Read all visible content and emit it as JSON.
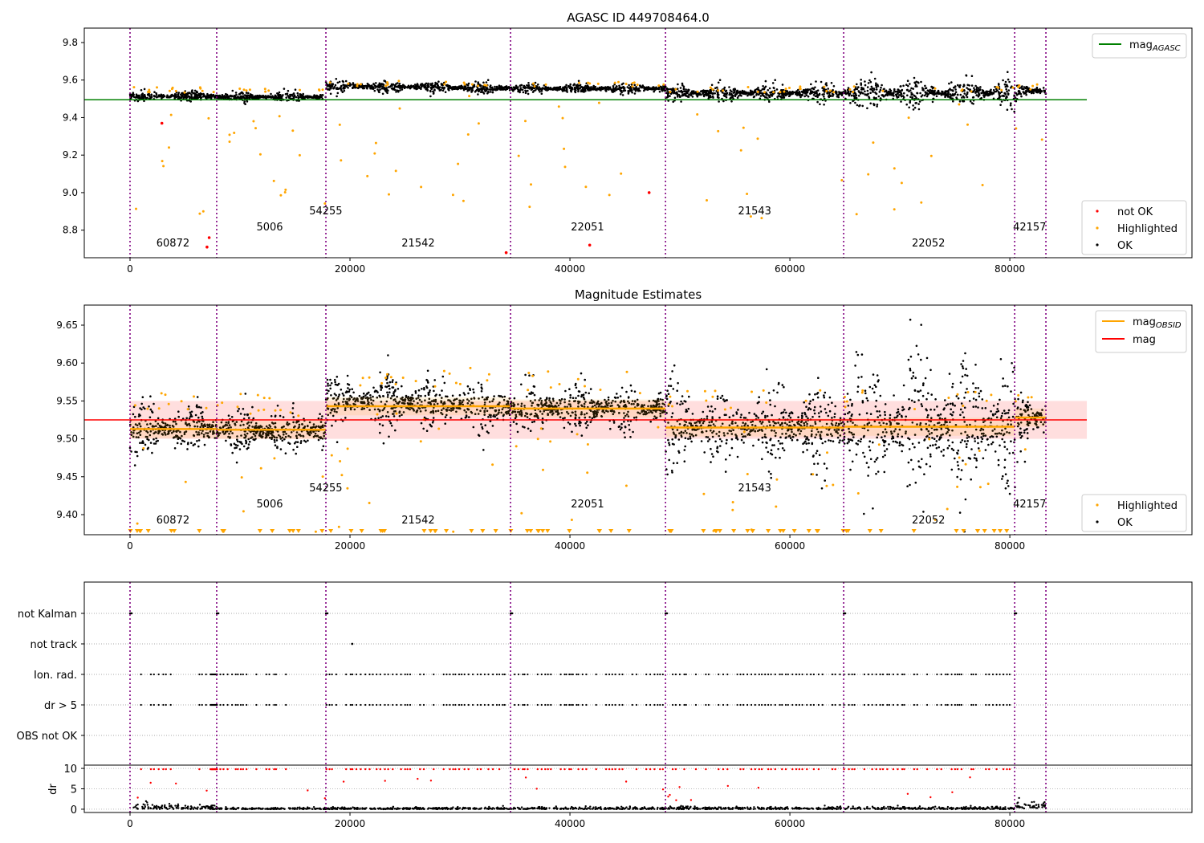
{
  "chart_data": {
    "type": "scatter",
    "xlim": [
      -4160,
      96560
    ],
    "xticks": [
      0,
      20000,
      40000,
      60000,
      80000
    ],
    "obsid_boundaries": [
      0,
      7880,
      17810,
      34600,
      48690,
      64890,
      80440,
      83280
    ],
    "obsid_labels": [
      {
        "text": "60872",
        "x": 3900,
        "row": 2
      },
      {
        "text": "5006",
        "x": 12700,
        "row": 1
      },
      {
        "text": "54255",
        "x": 17800,
        "row": 0
      },
      {
        "text": "21542",
        "x": 26200,
        "row": 2
      },
      {
        "text": "22051",
        "x": 41600,
        "row": 1
      },
      {
        "text": "21543",
        "x": 56800,
        "row": 0
      },
      {
        "text": "22052",
        "x": 72600,
        "row": 2
      },
      {
        "text": "42157",
        "x": 81800,
        "row": 1
      }
    ],
    "segments": [
      {
        "x0": 0,
        "x1": 7880,
        "mag_obsid": 9.513,
        "mean": 9.513,
        "spread": 0.012,
        "dr": 0.8
      },
      {
        "x0": 7880,
        "x1": 17810,
        "mag_obsid": 9.512,
        "mean": 9.51,
        "spread": 0.011,
        "dr": 0.25
      },
      {
        "x0": 17810,
        "x1": 34600,
        "mag_obsid": 9.543,
        "mean": 9.545,
        "spread": 0.014,
        "dr": 0.3
      },
      {
        "x0": 34600,
        "x1": 48690,
        "mag_obsid": 9.54,
        "mean": 9.54,
        "spread": 0.012,
        "dr": 0.35
      },
      {
        "x0": 48690,
        "x1": 64890,
        "mag_obsid": 9.515,
        "mean": 9.515,
        "spread": 0.02,
        "dr": 0.4
      },
      {
        "x0": 64890,
        "x1": 80440,
        "mag_obsid": 9.516,
        "mean": 9.516,
        "spread": 0.035,
        "dr": 0.4
      },
      {
        "x0": 80440,
        "x1": 83280,
        "mag_obsid": 9.528,
        "mean": 9.528,
        "spread": 0.018,
        "dr": 1.3
      }
    ],
    "panels": [
      {
        "title": "AGASC ID 449708464.0",
        "ylim": [
          8.653,
          9.877
        ],
        "yticks": [
          "8.8",
          "9.0",
          "9.2",
          "9.4",
          "9.6",
          "9.8"
        ],
        "mag_agasc": 9.495,
        "legend_lines": [
          {
            "label": "mag",
            "sub": "AGASC",
            "color": "#008000"
          }
        ],
        "legend_points": [
          {
            "label": "not OK",
            "color": "#ff0000"
          },
          {
            "label": "Highlighted",
            "color": "#ffa500"
          },
          {
            "label": "OK",
            "color": "#000000"
          }
        ]
      },
      {
        "title": "Magnitude Estimates",
        "ylim": [
          9.3735,
          9.6765
        ],
        "yticks": [
          "9.40",
          "9.45",
          "9.50",
          "9.55",
          "9.60",
          "9.65"
        ],
        "mag": 9.525,
        "mag_band": [
          9.5,
          9.55
        ],
        "legend_lines": [
          {
            "label": "mag",
            "sub": "OBSID",
            "color": "#ffa500"
          },
          {
            "label": "mag",
            "sub": "",
            "color": "#ff0000"
          }
        ],
        "legend_points": [
          {
            "label": "Highlighted",
            "color": "#ffa500"
          },
          {
            "label": "OK",
            "color": "#000000"
          }
        ]
      },
      {
        "flag_categories": [
          "not Kalman",
          "not track",
          "Ion. rad.",
          "dr > 5",
          "OBS not OK"
        ],
        "dr_label": "dr",
        "dr_ylim": [
          -0.8,
          10.8
        ],
        "dr_ticks": [
          "0",
          "5",
          "10"
        ]
      }
    ]
  }
}
